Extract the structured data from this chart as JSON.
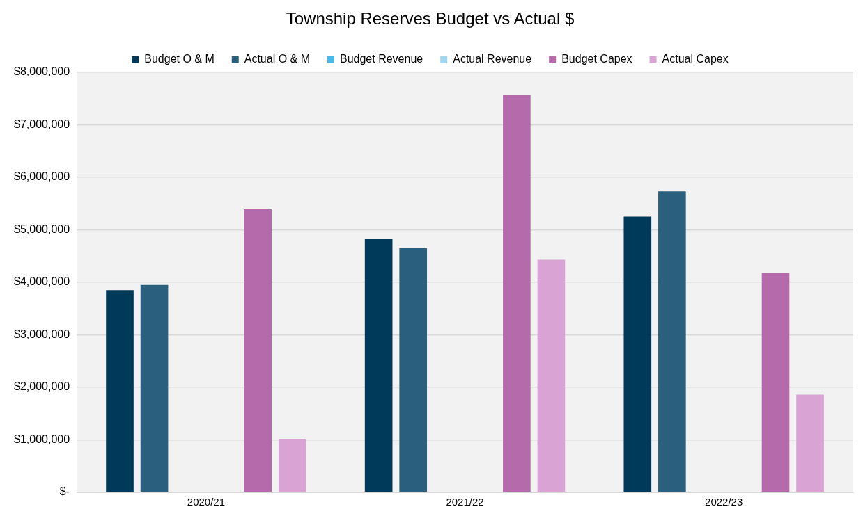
{
  "chart_data": {
    "type": "bar",
    "title": "Township Reserves Budget vs Actual $",
    "categories": [
      "2020/21",
      "2021/22",
      "2022/23"
    ],
    "series": [
      {
        "name": "Budget O & M",
        "color": "#003a5a",
        "values": [
          3850000,
          4820000,
          5250000
        ]
      },
      {
        "name": "Actual O & M",
        "color": "#2a5f7e",
        "values": [
          3950000,
          4650000,
          5730000
        ]
      },
      {
        "name": "Budget Revenue",
        "color": "#4cb8e8",
        "values": [
          null,
          null,
          null
        ]
      },
      {
        "name": "Actual Revenue",
        "color": "#9fd6f0",
        "values": [
          null,
          null,
          null
        ]
      },
      {
        "name": "Budget Capex",
        "color": "#b46aab",
        "values": [
          5390000,
          7570000,
          4180000
        ]
      },
      {
        "name": "Actual Capex",
        "color": "#d9a3d4",
        "values": [
          1020000,
          4430000,
          1860000
        ]
      }
    ],
    "ylim": [
      0,
      8000000
    ],
    "yticks": [
      {
        "value": 0,
        "label": "$-"
      },
      {
        "value": 1000000,
        "label": "$1,000,000"
      },
      {
        "value": 2000000,
        "label": "$2,000,000"
      },
      {
        "value": 3000000,
        "label": "$3,000,000"
      },
      {
        "value": 4000000,
        "label": "$4,000,000"
      },
      {
        "value": 5000000,
        "label": "$5,000,000"
      },
      {
        "value": 6000000,
        "label": "$6,000,000"
      },
      {
        "value": 7000000,
        "label": "$7,000,000"
      },
      {
        "value": 8000000,
        "label": "$8,000,000"
      }
    ],
    "grid": "y",
    "legend": "top"
  }
}
